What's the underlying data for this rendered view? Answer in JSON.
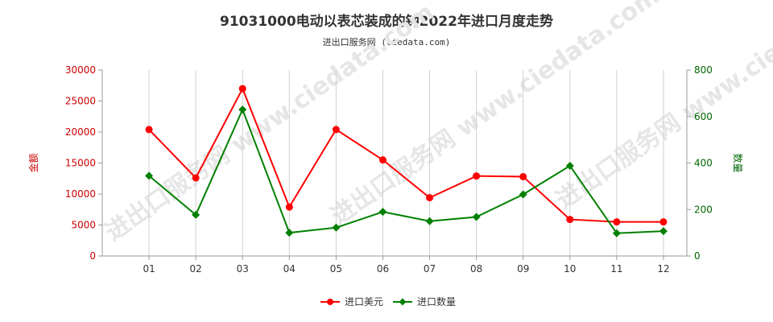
{
  "title": "91031000电动以表芯装成的钟2022年进口月度走势",
  "subtitle": "进出口服务网 (ciedata.com)",
  "watermark": "进出口服务网 www.ciedata.com",
  "chart_data": {
    "type": "line",
    "categories": [
      "01",
      "02",
      "03",
      "04",
      "05",
      "06",
      "07",
      "08",
      "09",
      "10",
      "11",
      "12"
    ],
    "y_left": {
      "label": "金额",
      "ylim": [
        0,
        30000
      ],
      "ticks": [
        0,
        5000,
        10000,
        15000,
        20000,
        25000,
        30000
      ],
      "color": "#cc0000"
    },
    "y_right": {
      "label": "数量",
      "ylim": [
        0,
        800
      ],
      "ticks": [
        0,
        200,
        400,
        600,
        800
      ],
      "color": "#006600"
    },
    "grid": "vertical",
    "legend_position": "bottom",
    "series": [
      {
        "name": "进口美元",
        "axis": "left",
        "color": "#ff0000",
        "marker": "circle",
        "values": [
          20400,
          12600,
          27000,
          7900,
          20400,
          15500,
          9400,
          12900,
          12800,
          5900,
          5500,
          5500
        ]
      },
      {
        "name": "进口数量",
        "axis": "right",
        "color": "#008000",
        "marker": "diamond",
        "values": [
          345,
          177,
          630,
          100,
          122,
          190,
          150,
          168,
          265,
          388,
          98,
          107
        ]
      }
    ]
  }
}
